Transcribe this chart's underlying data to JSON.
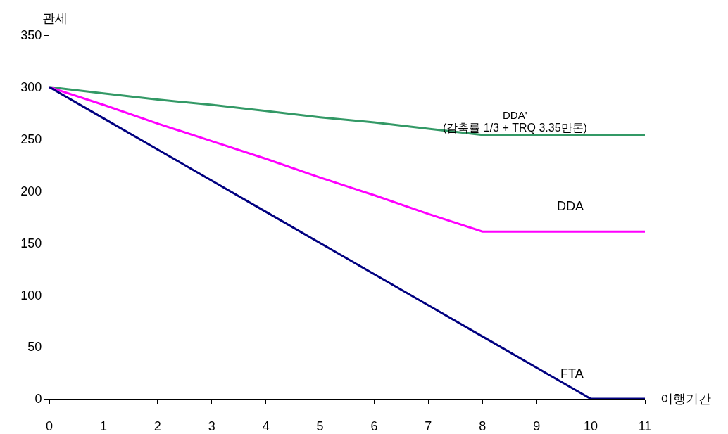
{
  "chart_data": {
    "type": "line",
    "xlabel": "이행기간",
    "ylabel": "관세",
    "x": [
      0,
      1,
      2,
      3,
      4,
      5,
      6,
      7,
      8,
      9,
      10,
      11
    ],
    "series": [
      {
        "name": "DDA'",
        "color": "#339966",
        "values": [
          300,
          294,
          288,
          283,
          277,
          271,
          266,
          260,
          254,
          254,
          254,
          254
        ]
      },
      {
        "name": "DDA",
        "color": "#ff00ff",
        "values": [
          300,
          283,
          265,
          248,
          231,
          213,
          196,
          178,
          161,
          161,
          161,
          161
        ]
      },
      {
        "name": "FTA",
        "color": "#000080",
        "values": [
          300,
          270,
          240,
          210,
          180,
          150,
          120,
          90,
          60,
          30,
          0,
          0
        ]
      }
    ],
    "annotations": [
      "(감축률 1/3 + TRQ 3.35만톤)"
    ],
    "xlim": [
      0,
      11
    ],
    "xticks": [
      0,
      1,
      2,
      3,
      4,
      5,
      6,
      7,
      8,
      9,
      10,
      11
    ],
    "ylim": [
      0,
      350
    ],
    "yticks": [
      0,
      50,
      100,
      150,
      200,
      250,
      300,
      350
    ],
    "grid": "y",
    "legend": false,
    "marker": "none",
    "line_style": "solid"
  }
}
